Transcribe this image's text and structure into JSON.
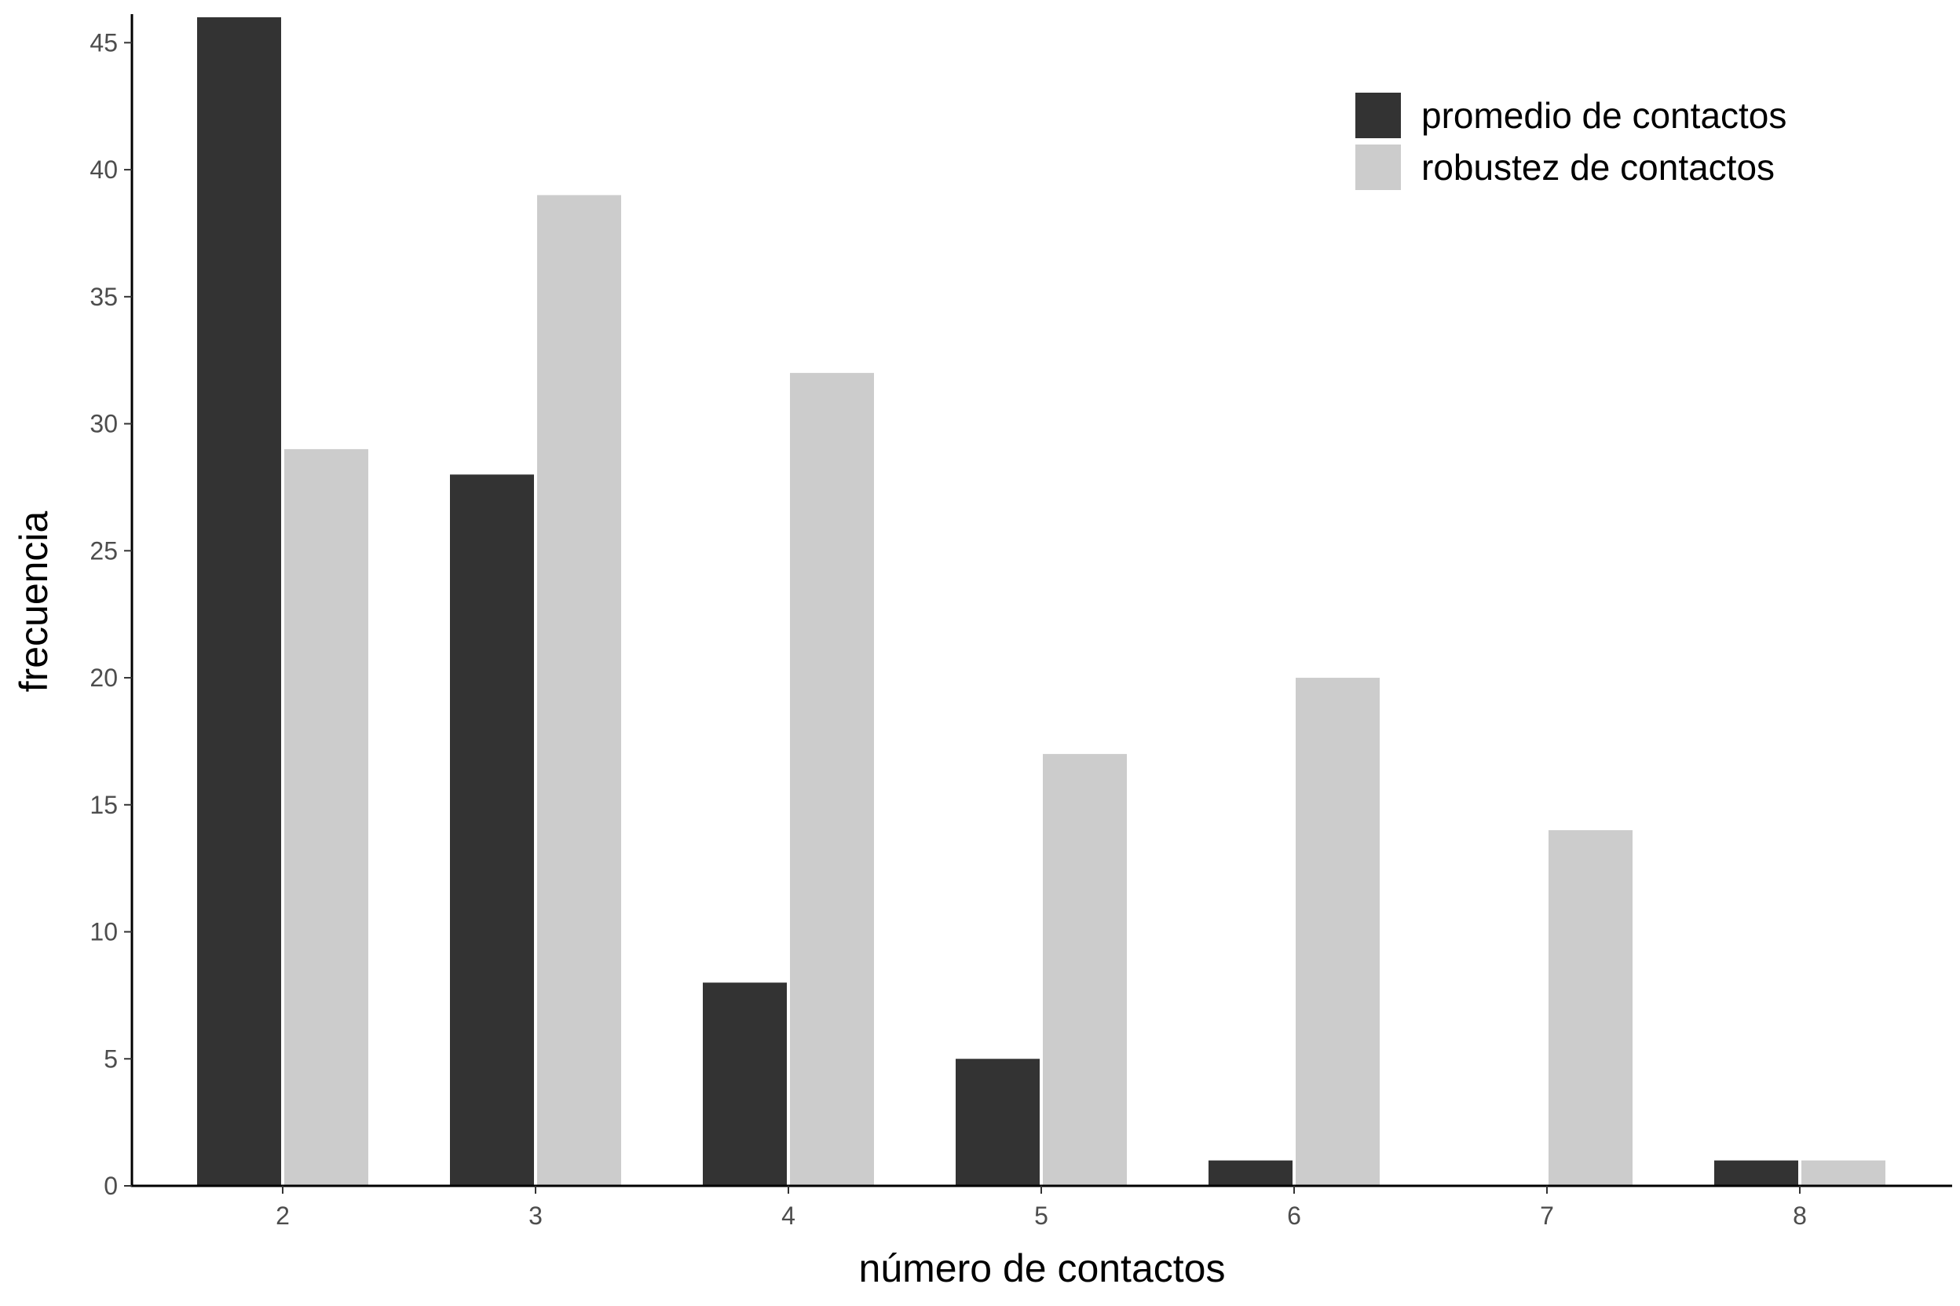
{
  "chart_data": {
    "type": "bar",
    "categories": [
      "2",
      "3",
      "4",
      "5",
      "6",
      "7",
      "8"
    ],
    "series": [
      {
        "name": "promedio de contactos",
        "color": "#333333",
        "values": [
          46,
          28,
          8,
          5,
          1,
          0,
          1
        ]
      },
      {
        "name": "robustez de contactos",
        "color": "#cccccc",
        "values": [
          29,
          39,
          32,
          17,
          20,
          14,
          1
        ]
      }
    ],
    "xlabel": "número de contactos",
    "ylabel": "frecuencia",
    "ylim": [
      0,
      46
    ],
    "yticks": [
      "0",
      "5",
      "10",
      "15",
      "20",
      "25",
      "30",
      "35",
      "40",
      "45"
    ],
    "grid": false,
    "legend_position": "top-right"
  }
}
